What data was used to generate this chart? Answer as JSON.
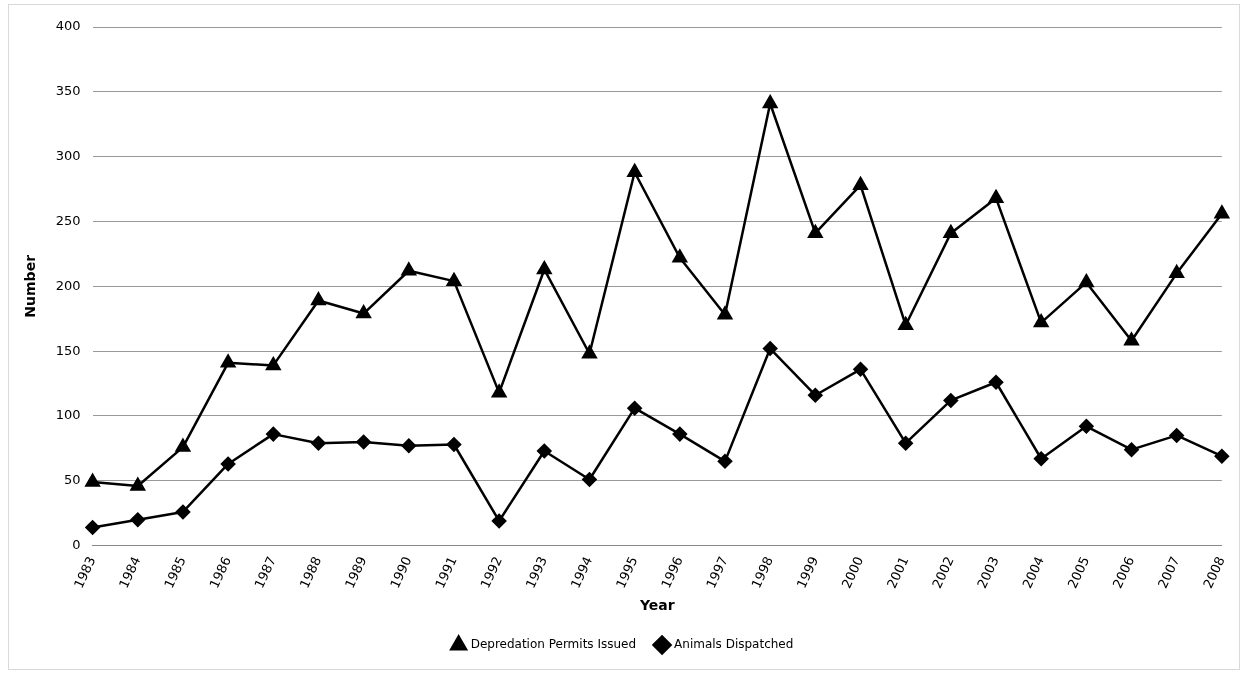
{
  "chart_data": {
    "type": "line",
    "xlabel": "Year",
    "ylabel": "Number",
    "categories": [
      "1983",
      "1984",
      "1985",
      "1986",
      "1987",
      "1988",
      "1989",
      "1990",
      "1991",
      "1992",
      "1993",
      "1994",
      "1995",
      "1996",
      "1997",
      "1998",
      "1999",
      "2000",
      "2001",
      "2002",
      "2003",
      "2004",
      "2005",
      "2006",
      "2007",
      "2008"
    ],
    "series": [
      {
        "name": "Depredation Permits Issued",
        "color": "#000000",
        "marker": "triangle",
        "values": [
          49,
          46,
          76,
          141,
          139,
          189,
          179,
          212,
          204,
          118,
          213,
          148,
          288,
          222,
          178,
          341,
          241,
          278,
          170,
          241,
          268,
          172,
          203,
          158,
          210,
          256
        ]
      },
      {
        "name": "Animals Dispatched",
        "color": "#000000",
        "marker": "diamond",
        "values": [
          14,
          20,
          26,
          63,
          86,
          79,
          80,
          77,
          78,
          19,
          73,
          51,
          106,
          86,
          65,
          152,
          116,
          136,
          79,
          112,
          126,
          67,
          92,
          74,
          85,
          69
        ]
      }
    ],
    "ylim": [
      0,
      400
    ],
    "yticks": [
      0,
      50,
      100,
      150,
      200,
      250,
      300,
      350,
      400
    ],
    "grid": "y",
    "legend": "bottom"
  }
}
